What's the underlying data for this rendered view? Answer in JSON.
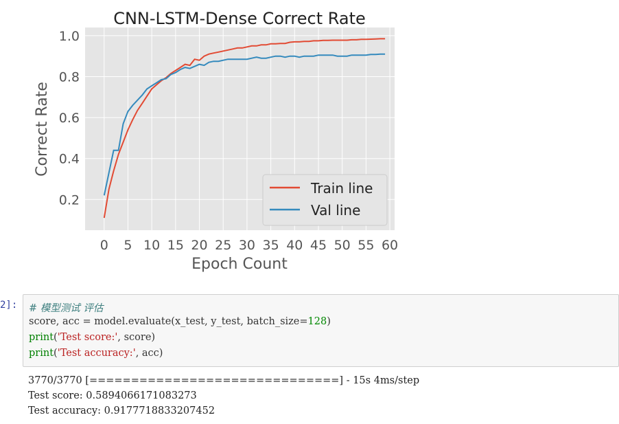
{
  "chart_data": {
    "type": "line",
    "title": "CNN-LSTM-Dense Correct Rate",
    "xlabel": "Epoch Count",
    "ylabel": "Correct Rate",
    "xlim": [
      -4,
      61
    ],
    "ylim": [
      0.05,
      1.04
    ],
    "xticks": [
      0,
      5,
      10,
      15,
      20,
      25,
      30,
      35,
      40,
      45,
      50,
      55,
      60
    ],
    "yticks": [
      0.2,
      0.4,
      0.6,
      0.8,
      1.0
    ],
    "ytick_labels": [
      "0.2",
      "0.4",
      "0.6",
      "0.8",
      "1.0"
    ],
    "grid": true,
    "legend_position": "lower-right",
    "x": [
      0,
      1,
      2,
      3,
      4,
      5,
      6,
      7,
      8,
      9,
      10,
      11,
      12,
      13,
      14,
      15,
      16,
      17,
      18,
      19,
      20,
      21,
      22,
      23,
      24,
      25,
      26,
      27,
      28,
      29,
      30,
      31,
      32,
      33,
      34,
      35,
      36,
      37,
      38,
      39,
      40,
      41,
      42,
      43,
      44,
      45,
      46,
      47,
      48,
      49,
      50,
      51,
      52,
      53,
      54,
      55,
      56,
      57,
      58,
      59
    ],
    "series": [
      {
        "name": "Train line",
        "color": "#e24a33",
        "values": [
          0.11,
          0.25,
          0.34,
          0.42,
          0.48,
          0.54,
          0.59,
          0.635,
          0.67,
          0.705,
          0.74,
          0.76,
          0.78,
          0.795,
          0.815,
          0.83,
          0.845,
          0.86,
          0.855,
          0.885,
          0.88,
          0.9,
          0.91,
          0.915,
          0.92,
          0.925,
          0.93,
          0.935,
          0.94,
          0.94,
          0.945,
          0.95,
          0.95,
          0.955,
          0.955,
          0.96,
          0.96,
          0.962,
          0.962,
          0.968,
          0.97,
          0.97,
          0.972,
          0.972,
          0.975,
          0.975,
          0.977,
          0.977,
          0.978,
          0.978,
          0.978,
          0.978,
          0.98,
          0.98,
          0.982,
          0.982,
          0.983,
          0.984,
          0.985,
          0.985
        ]
      },
      {
        "name": "Val line",
        "color": "#348abd",
        "values": [
          0.22,
          0.33,
          0.44,
          0.44,
          0.57,
          0.63,
          0.66,
          0.685,
          0.71,
          0.74,
          0.755,
          0.77,
          0.785,
          0.79,
          0.81,
          0.82,
          0.835,
          0.845,
          0.84,
          0.85,
          0.86,
          0.855,
          0.87,
          0.875,
          0.875,
          0.88,
          0.885,
          0.885,
          0.885,
          0.885,
          0.885,
          0.89,
          0.895,
          0.89,
          0.89,
          0.895,
          0.9,
          0.9,
          0.895,
          0.9,
          0.9,
          0.895,
          0.9,
          0.9,
          0.9,
          0.905,
          0.905,
          0.905,
          0.905,
          0.9,
          0.9,
          0.9,
          0.905,
          0.905,
          0.905,
          0.905,
          0.908,
          0.908,
          0.91,
          0.91
        ]
      }
    ]
  },
  "cell": {
    "prompt": "2]:",
    "code": {
      "comment": "# 模型测试 评估",
      "line2": "score, acc = model.evaluate(x_test, y_test, batch_size=",
      "line2_num": "128",
      "line2_end": ")",
      "print": "print",
      "line3_str": "'Test score:'",
      "line3_rest": ", score)",
      "line4_str": "'Test accuracy:'",
      "line4_rest": ", acc)"
    },
    "output": [
      "3770/3770 [==============================] - 15s 4ms/step",
      "Test score: 0.5894066171083273",
      "Test accuracy: 0.9177718833207452"
    ]
  }
}
